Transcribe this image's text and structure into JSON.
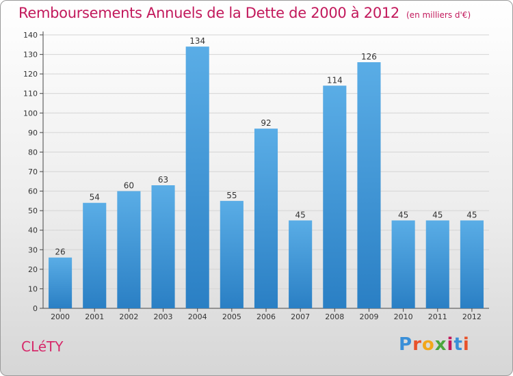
{
  "header": {
    "title": "Remboursements Annuels de la Dette de 2000 à 2012",
    "subtitle": "(en milliers d'€)"
  },
  "commune": "CLéTY",
  "logo": {
    "text": "Proxiti",
    "colors": [
      "#3a8fd8",
      "#e8522a",
      "#f2a71b",
      "#4aa63c",
      "#c2185b",
      "#3a8fd8",
      "#e8522a"
    ]
  },
  "colors": {
    "bar_light": "#5aade6",
    "bar_dark": "#2a7fc4",
    "title": "#c2185b",
    "grid": "#d4d4d4"
  },
  "chart_data": {
    "type": "bar",
    "title": "Remboursements Annuels de la Dette de 2000 à 2012",
    "subtitle": "(en milliers d'€)",
    "categories": [
      "2000",
      "2001",
      "2002",
      "2003",
      "2004",
      "2005",
      "2006",
      "2007",
      "2008",
      "2009",
      "2010",
      "2011",
      "2012"
    ],
    "values": [
      26,
      54,
      60,
      63,
      134,
      55,
      92,
      45,
      114,
      126,
      45,
      45,
      45
    ],
    "ylim": [
      0,
      140
    ],
    "yticks": [
      0,
      10,
      20,
      30,
      40,
      50,
      60,
      70,
      80,
      90,
      100,
      110,
      120,
      130,
      140
    ],
    "grid": true,
    "data_labels": true
  }
}
